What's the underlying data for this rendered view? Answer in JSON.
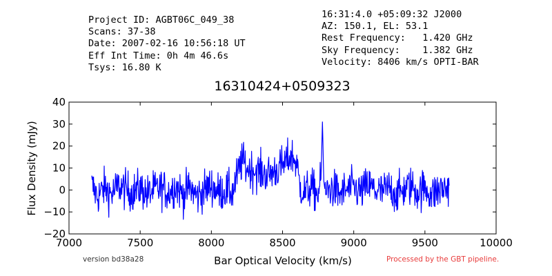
{
  "header_left": [
    "Project ID: AGBT06C_049_38",
    "Scans: 37-38",
    "Date: 2007-02-16 10:56:18 UT",
    "Eff Int Time: 0h 4m 46.6s",
    "Tsys: 16.80 K"
  ],
  "header_right": [
    "16:31:4.0 +05:09:32 J2000",
    "AZ: 150.1, EL: 53.1",
    "Rest Frequency:   1.420 GHz",
    "Sky Frequency:    1.382 GHz",
    "Velocity: 8406 km/s OPTI-BAR"
  ],
  "footer": {
    "version": "version bd38a28",
    "pipeline": "Processed by the GBT pipeline."
  },
  "colors": {
    "series": "#0000ff",
    "pipeline_text": "#e83b3b"
  },
  "chart_data": {
    "type": "line",
    "title": "16310424+0509323",
    "xlabel": "Bar Optical Velocity (km/s)",
    "ylabel": "Flux Density (mJy)",
    "xlim": [
      7000,
      10000
    ],
    "ylim": [
      -20,
      40
    ],
    "xticks": [
      "7000",
      "7500",
      "8000",
      "8500",
      "9000",
      "9500",
      "10000"
    ],
    "yticks": [
      "−20",
      "−10",
      "0",
      "10",
      "20",
      "30",
      "40"
    ],
    "grid": false,
    "legend": "none",
    "series": [
      {
        "x": [
          7160,
          7200,
          7250,
          7300,
          7350,
          7400,
          7450,
          7500,
          7550,
          7600,
          7650,
          7700,
          7750,
          7800,
          7850,
          7900,
          7950,
          8000,
          8050,
          8100,
          8150,
          8180,
          8200,
          8220,
          8250,
          8300,
          8350,
          8400,
          8450,
          8500,
          8530,
          8560,
          8580,
          8600,
          8620,
          8650,
          8700,
          8750,
          8770,
          8780,
          8790,
          8800,
          8850,
          8900,
          8950,
          9000,
          9050,
          9100,
          9150,
          9200,
          9250,
          9300,
          9350,
          9400,
          9450,
          9500,
          9550,
          9600,
          9650,
          9670
        ],
        "values": [
          2,
          -3,
          1,
          -2,
          2,
          0,
          -1,
          1,
          -2,
          0,
          1,
          -1,
          2,
          -2,
          1,
          -3,
          0,
          2,
          -1,
          0,
          -1,
          6,
          11,
          13,
          10,
          9,
          8,
          7,
          9,
          11,
          13,
          16,
          14,
          12,
          2,
          -1,
          1,
          -2,
          5,
          31,
          4,
          -1,
          1,
          -2,
          0,
          1,
          -1,
          2,
          0,
          -1,
          1,
          -2,
          0,
          2,
          -1,
          1,
          -2,
          0,
          1,
          2
        ]
      }
    ]
  }
}
